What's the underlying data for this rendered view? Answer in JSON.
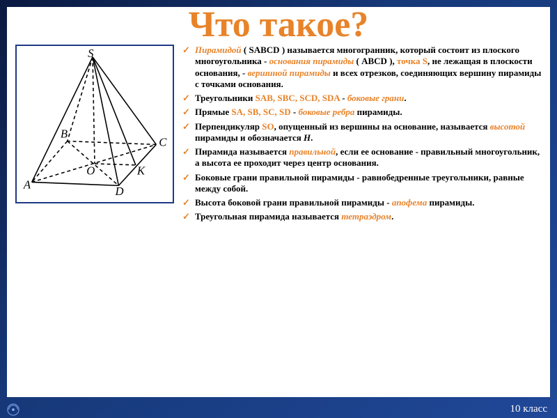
{
  "title": "Что такое?",
  "footer": "10 класс",
  "figure": {
    "labels": [
      "S",
      "A",
      "B",
      "C",
      "D",
      "O",
      "K"
    ],
    "stroke": "#000000",
    "dash": "5,4"
  },
  "bullets": [
    {
      "html": "<span class='it hl'>Пирамидой</span> ( SABCD ) называется многогранник, который состоит из плоского многоугольника - <span class='it hl'>основания пирамиды</span> ( ABCD ), <span class='hl'>точка S</span>, не лежащая в плоскости основания, - <span class='it hl'>вершиной пирамиды</span> и всех отрезков, соединяющих вершину пирамиды с точками основания."
    },
    {
      "html": "Треугольники <span class='hl'>SAB, SBC, SCD, SDA</span> - <span class='it hl'>боковые грани</span>."
    },
    {
      "html": "Прямые <span class='hl'>SA, SB, SC, SD</span> - <span class='it hl'>боковые ребра</span> пирамиды."
    },
    {
      "html": "Перпендикуляр <span class='hl'>SO</span>, опущенный из вершины на основание, называется <span class='it hl'>высотой</span> пирамиды и обозначается <span class='it'>Н</span>."
    },
    {
      "html": "Пирамида называется <span class='it hl'>правильной</span>, если ее основание - правильный многоугольник, а высота ее проходит через центр основания."
    },
    {
      "html": "Боковые грани правильной пирамиды - равнобедренные треугольники, равные между собой."
    },
    {
      "html": "Высота боковой грани правильной пирамиды - <span class='it hl'>апофема</span> пирамиды."
    },
    {
      "html": "Треугольная пирамида называется <span class='it hl'>тетраэдром</span>."
    }
  ],
  "colors": {
    "accent": "#e8832a",
    "frame_border": "#1e3a84",
    "bg_grad_start": "#0a1940",
    "bg_grad_end": "#204898",
    "text": "#000000",
    "footer": "#ffffff"
  },
  "typography": {
    "title_fontsize": 52,
    "bullet_fontsize": 13,
    "font_family": "Times New Roman"
  }
}
